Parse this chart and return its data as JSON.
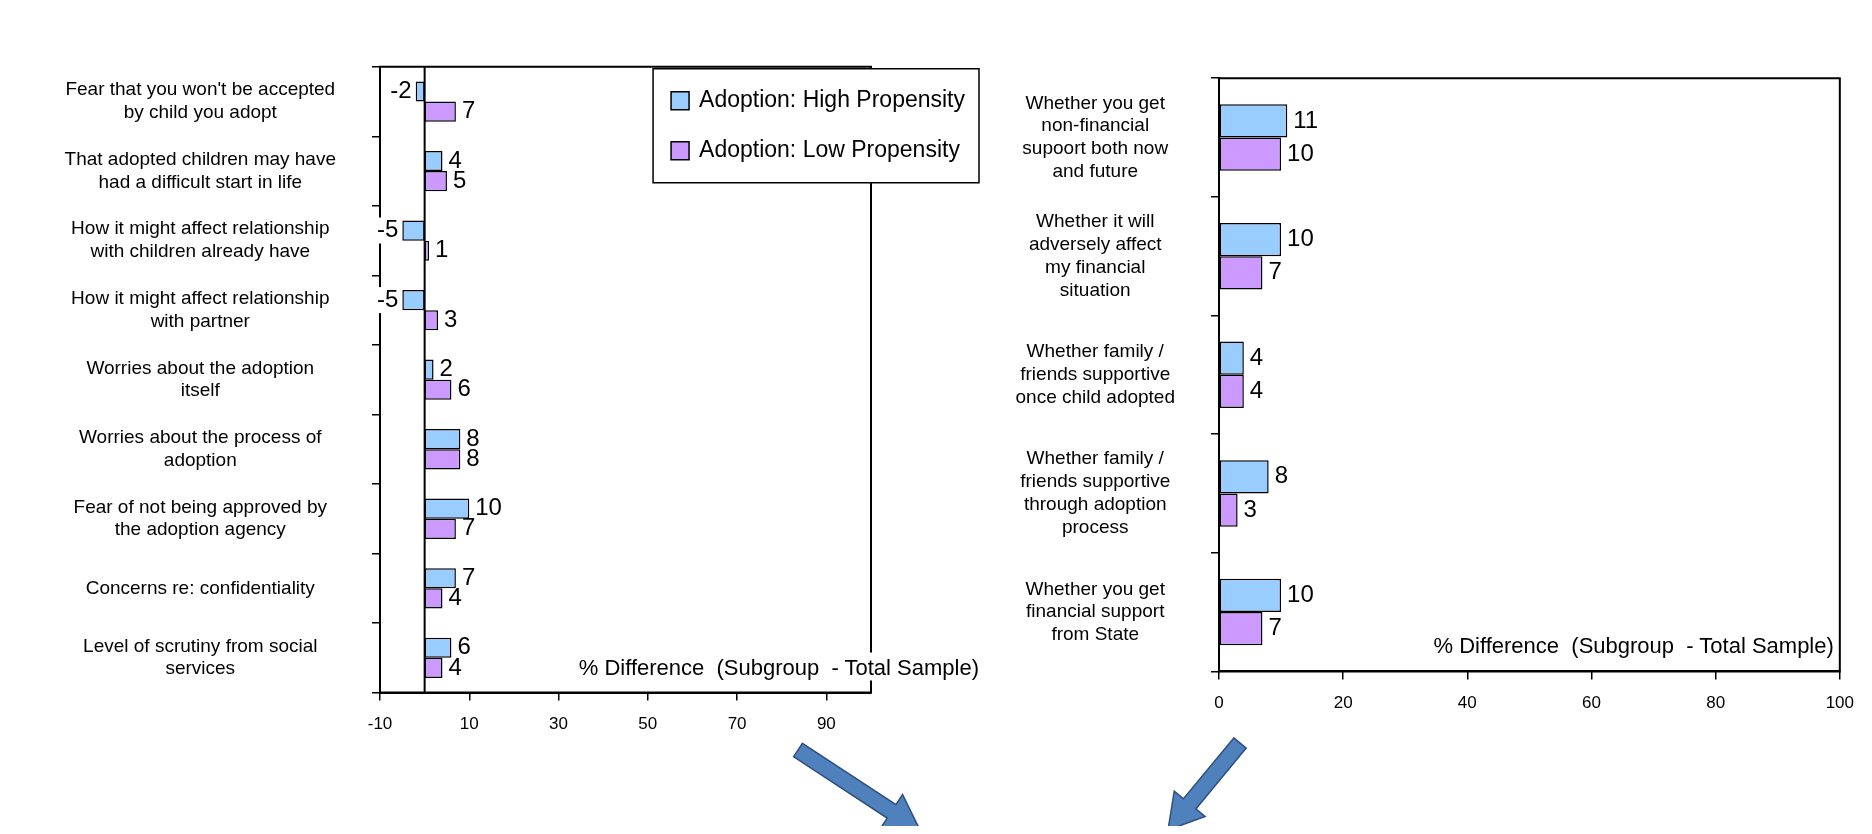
{
  "chart_data": [
    {
      "type": "bar",
      "orientation": "horizontal",
      "categories": [
        "Fear that you won't be accepted by child you adopt",
        "That adopted children may have had a difficult start in life",
        "How it might affect relationship with children already have",
        "How it might affect relationship with partner",
        "Worries about the adoption itself",
        "Worries about the process of adoption",
        "Fear of not being approved by the adoption agency",
        "Concerns re: confidentiality",
        "Level of scrutiny from social services"
      ],
      "series": [
        {
          "name": "Adoption: High Propensity",
          "color": "#99ccff",
          "values": [
            -2,
            4,
            -5,
            -5,
            2,
            8,
            10,
            7,
            6
          ]
        },
        {
          "name": "Adoption: Low Propensity",
          "color": "#cc99ff",
          "values": [
            7,
            5,
            1,
            3,
            6,
            8,
            7,
            4,
            4
          ]
        }
      ],
      "xlim": [
        -10,
        100
      ],
      "xticks": [
        -10,
        10,
        30,
        50,
        70,
        90
      ],
      "xlabel": "% Difference  (Subgroup  - Total Sample)",
      "data_labels": true,
      "legend": "top right"
    },
    {
      "type": "bar",
      "orientation": "horizontal",
      "categories": [
        "Whether you get non-financial supoort both now and future",
        "Whether it will adversely affect my financial situation",
        "Whether family / friends supportive once child adopted",
        "Whether family / friends supportive through adoption process",
        "Whether you get financial support from State"
      ],
      "series": [
        {
          "color": "#99ccff",
          "values": [
            11,
            10,
            4,
            8,
            10
          ]
        },
        {
          "color": "#cc99ff",
          "values": [
            10,
            7,
            4,
            3,
            7
          ]
        }
      ],
      "xlim": [
        0,
        100
      ],
      "xticks": [
        0,
        20,
        40,
        60,
        80,
        100
      ],
      "xlabel": "% Difference  (Subgroup  - Total Sample)",
      "data_labels": true
    }
  ]
}
